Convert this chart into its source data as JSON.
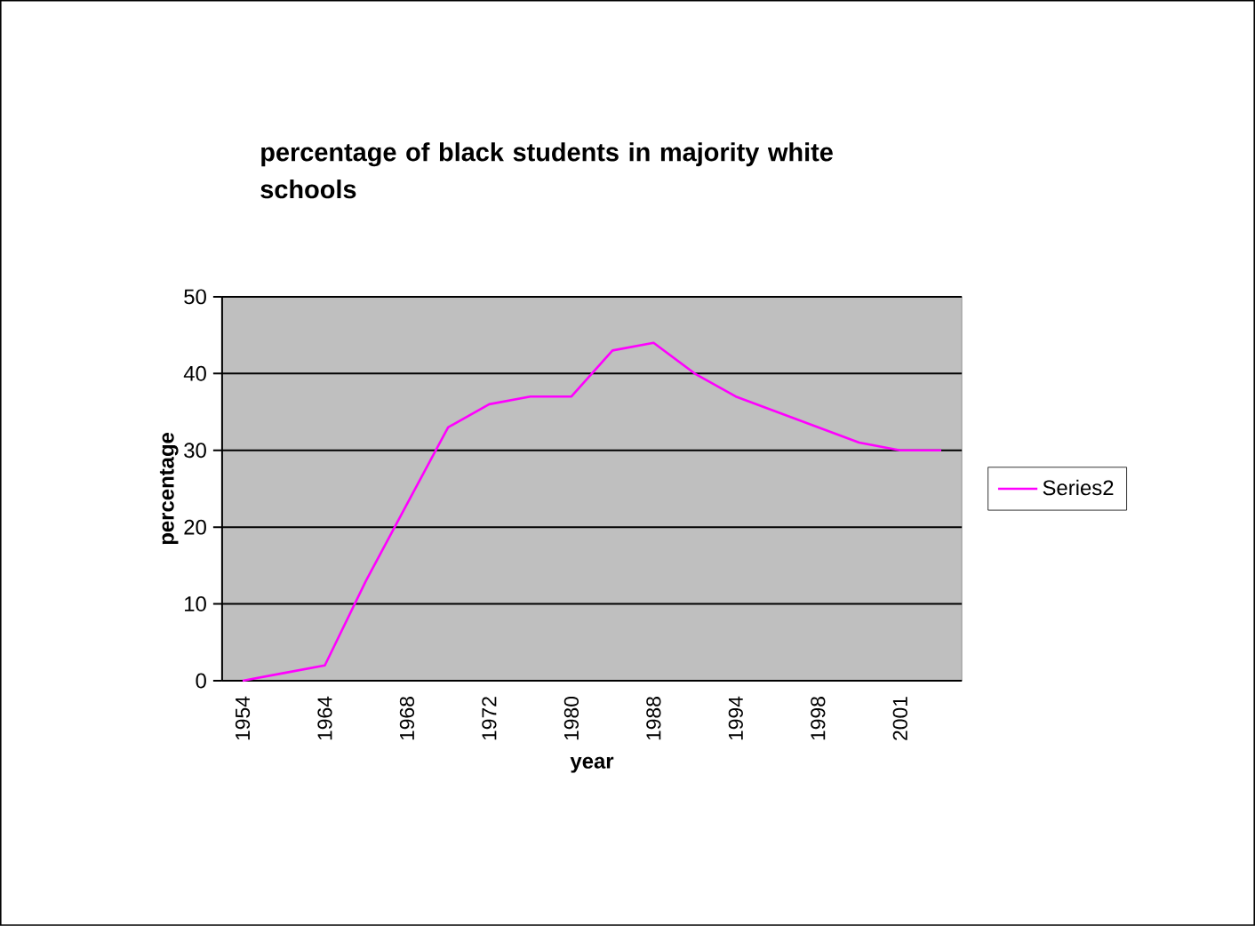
{
  "chart_data": {
    "type": "line",
    "title": "percentage of black students in majority white schools",
    "xlabel": "year",
    "ylabel": "percentage",
    "categories": [
      "1954",
      null,
      "1964",
      null,
      "1968",
      null,
      "1972",
      null,
      "1980",
      null,
      "1988",
      null,
      "1994",
      null,
      "1998",
      null,
      "2001",
      null
    ],
    "series": [
      {
        "name": "Series2",
        "color": "#ff00ff",
        "values": [
          0,
          1,
          2,
          13,
          23,
          33,
          36,
          37,
          37,
          43,
          44,
          40,
          37,
          35,
          33,
          31,
          30,
          30
        ]
      }
    ],
    "ylim": [
      0,
      50
    ],
    "yticks": [
      0,
      10,
      20,
      30,
      40,
      50
    ],
    "grid": "y",
    "legend": "right",
    "marker": "none",
    "line_style": "solid"
  }
}
